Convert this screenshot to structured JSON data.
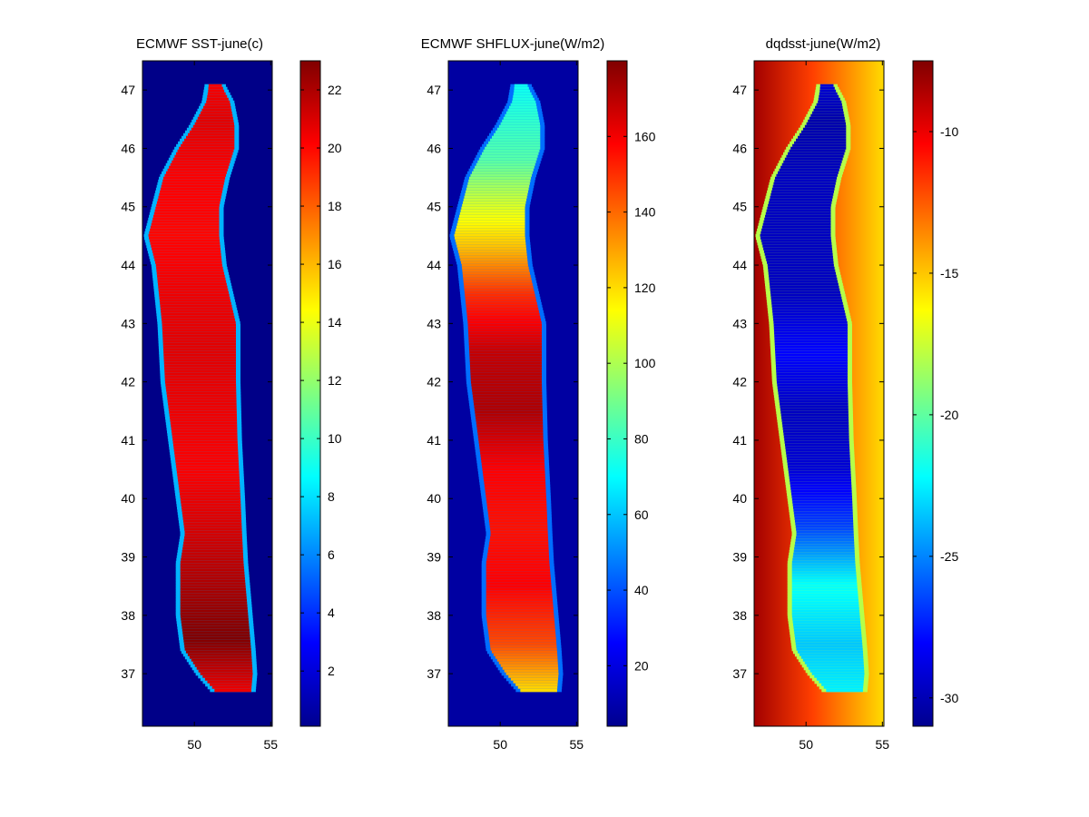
{
  "chart_data": [
    {
      "type": "heatmap",
      "title": "ECMWF SST-june(c)",
      "x_ticks": [
        50,
        55
      ],
      "xlim": [
        46.6,
        55.1
      ],
      "y_ticks": [
        37,
        38,
        39,
        40,
        41,
        42,
        43,
        44,
        45,
        46,
        47
      ],
      "ylim": [
        36.1,
        47.5
      ],
      "colorbar": {
        "clim": [
          0.1,
          23
        ],
        "ticks": [
          2,
          4,
          6,
          8,
          10,
          12,
          14,
          16,
          18,
          20,
          22
        ]
      },
      "field": {
        "background": 0.3,
        "edge": 7,
        "body": [
          [
            36.7,
            20.5
          ],
          [
            37.6,
            23.0
          ],
          [
            38.5,
            22.0
          ],
          [
            39.5,
            21.0
          ],
          [
            40.5,
            20.2
          ],
          [
            41.5,
            20.5
          ],
          [
            42.5,
            20.8
          ],
          [
            43.5,
            20.5
          ],
          [
            44.5,
            20.0
          ],
          [
            45.5,
            20.2
          ],
          [
            46.5,
            20.8
          ],
          [
            47.1,
            20.3
          ]
        ]
      }
    },
    {
      "type": "heatmap",
      "title": "ECMWF SHFLUX-june(W/m2)",
      "x_ticks": [
        50,
        55
      ],
      "xlim": [
        46.6,
        55.1
      ],
      "y_ticks": [
        37,
        38,
        39,
        40,
        41,
        42,
        43,
        44,
        45,
        46,
        47
      ],
      "ylim": [
        36.1,
        47.5
      ],
      "colorbar": {
        "clim": [
          4,
          180
        ],
        "ticks": [
          20,
          40,
          60,
          80,
          100,
          120,
          140,
          160
        ]
      },
      "field": {
        "background": 10,
        "edge": 45,
        "body": [
          [
            36.7,
            120
          ],
          [
            37.5,
            145
          ],
          [
            38.5,
            158
          ],
          [
            39.5,
            155
          ],
          [
            40.5,
            158
          ],
          [
            41.5,
            172
          ],
          [
            42.5,
            168
          ],
          [
            43.5,
            150
          ],
          [
            44.3,
            125
          ],
          [
            45.0,
            108
          ],
          [
            45.8,
            85
          ],
          [
            46.5,
            78
          ],
          [
            47.1,
            72
          ]
        ]
      }
    },
    {
      "type": "heatmap",
      "title": "dqdsst-june(W/m2)",
      "x_ticks": [
        50,
        55
      ],
      "xlim": [
        46.6,
        55.1
      ],
      "y_ticks": [
        37,
        38,
        39,
        40,
        41,
        42,
        43,
        44,
        45,
        46,
        47
      ],
      "ylim": [
        36.1,
        47.5
      ],
      "colorbar": {
        "clim": [
          -31,
          -7.5
        ],
        "ticks": [
          -10,
          -15,
          -20,
          -25,
          -30
        ]
      },
      "field": {
        "background_west": -8.3,
        "background_east": -15.5,
        "edge": -18,
        "body": [
          [
            36.7,
            -22.5
          ],
          [
            37.5,
            -23.5
          ],
          [
            38.5,
            -22.0
          ],
          [
            39.5,
            -26.5
          ],
          [
            40.5,
            -29.0
          ],
          [
            41.5,
            -29.5
          ],
          [
            42.5,
            -28.0
          ],
          [
            43.5,
            -29.5
          ],
          [
            44.5,
            -29.5
          ],
          [
            45.5,
            -29.5
          ],
          [
            46.5,
            -30.0
          ],
          [
            47.1,
            -29.0
          ]
        ]
      }
    }
  ]
}
